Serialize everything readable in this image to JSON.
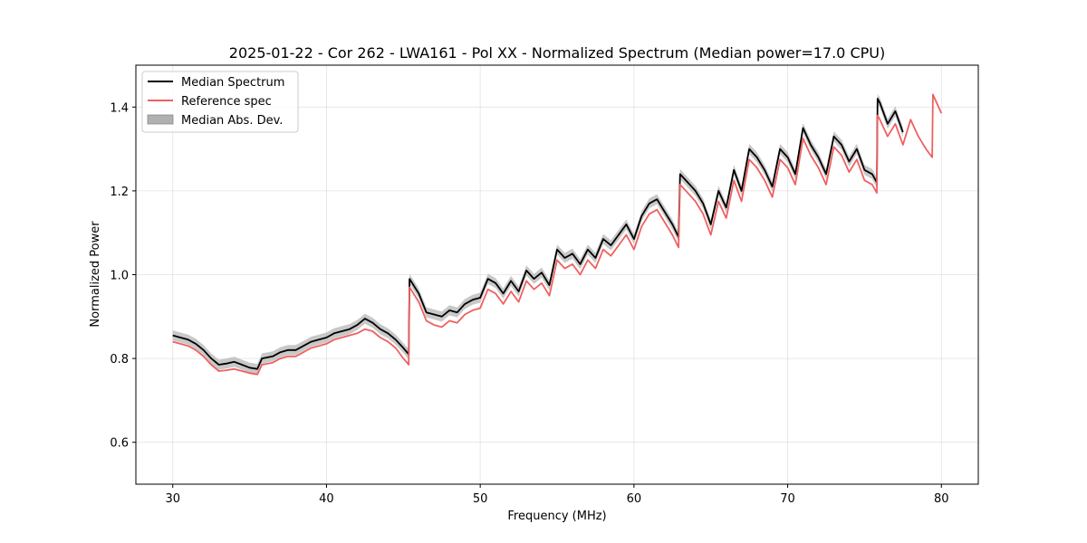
{
  "chart_data": {
    "type": "line",
    "title": "2025-01-22 - Cor 262 - LWA161 - Pol XX - Normalized Spectrum (Median power=17.0 CPU)",
    "xlabel": "Frequency (MHz)",
    "ylabel": "Normalized Power",
    "xlim": [
      27.6,
      82.4
    ],
    "ylim": [
      0.5,
      1.5
    ],
    "xticks": [
      30,
      40,
      50,
      60,
      70,
      80
    ],
    "xtick_labels": [
      "30",
      "40",
      "50",
      "60",
      "70",
      "80"
    ],
    "yticks": [
      0.6,
      0.8,
      1.0,
      1.2,
      1.4
    ],
    "ytick_labels": [
      "0.6",
      "0.8",
      "1.0",
      "1.2",
      "1.4"
    ],
    "grid": true,
    "legend_position": "top-left",
    "series": [
      {
        "name": "Median Spectrum",
        "color": "#000000",
        "x": [
          30.0,
          30.5,
          31.0,
          31.5,
          32.0,
          32.5,
          33.0,
          33.5,
          34.0,
          34.5,
          35.0,
          35.5,
          35.8,
          36.5,
          37.0,
          37.5,
          38.0,
          38.5,
          39.0,
          39.5,
          40.0,
          40.5,
          41.0,
          41.5,
          42.0,
          42.5,
          43.0,
          43.5,
          44.0,
          44.5,
          45.0,
          45.35,
          45.4,
          46.0,
          46.5,
          47.0,
          47.5,
          48.0,
          48.5,
          49.0,
          49.5,
          50.0,
          50.5,
          51.0,
          51.5,
          52.0,
          52.5,
          53.0,
          53.5,
          54.0,
          54.5,
          55.0,
          55.5,
          56.0,
          56.5,
          57.0,
          57.5,
          58.0,
          58.5,
          59.0,
          59.5,
          60.0,
          60.5,
          61.0,
          61.5,
          62.0,
          62.5,
          62.9,
          63.0,
          63.5,
          64.0,
          64.5,
          65.0,
          65.5,
          66.0,
          66.5,
          67.0,
          67.5,
          68.0,
          68.5,
          69.0,
          69.5,
          70.0,
          70.5,
          71.0,
          71.5,
          72.0,
          72.5,
          73.0,
          73.5,
          74.0,
          74.5,
          75.0,
          75.5,
          75.8,
          75.85,
          76.0,
          76.5,
          77.0,
          77.5
        ],
        "values": [
          0.855,
          0.85,
          0.845,
          0.835,
          0.82,
          0.8,
          0.785,
          0.788,
          0.792,
          0.785,
          0.778,
          0.775,
          0.8,
          0.805,
          0.815,
          0.82,
          0.82,
          0.83,
          0.84,
          0.845,
          0.85,
          0.86,
          0.865,
          0.87,
          0.88,
          0.895,
          0.885,
          0.87,
          0.86,
          0.845,
          0.825,
          0.81,
          0.99,
          0.955,
          0.91,
          0.905,
          0.9,
          0.915,
          0.91,
          0.93,
          0.94,
          0.945,
          0.99,
          0.98,
          0.955,
          0.985,
          0.96,
          1.01,
          0.99,
          1.005,
          0.975,
          1.06,
          1.04,
          1.05,
          1.025,
          1.06,
          1.04,
          1.085,
          1.07,
          1.095,
          1.12,
          1.085,
          1.14,
          1.17,
          1.18,
          1.15,
          1.12,
          1.09,
          1.24,
          1.22,
          1.2,
          1.17,
          1.12,
          1.2,
          1.16,
          1.25,
          1.2,
          1.3,
          1.28,
          1.25,
          1.21,
          1.3,
          1.28,
          1.24,
          1.35,
          1.31,
          1.28,
          1.24,
          1.33,
          1.31,
          1.27,
          1.3,
          1.25,
          1.24,
          1.22,
          1.42,
          1.41,
          1.36,
          1.39,
          1.34
        ],
        "band": {
          "name": "Median Abs. Dev.",
          "color": "#b0b0b0",
          "spread": 0.012
        }
      },
      {
        "name": "Reference spec",
        "color": "#f06060",
        "x": [
          30.0,
          30.5,
          31.0,
          31.5,
          32.0,
          32.5,
          33.0,
          33.5,
          34.0,
          34.5,
          35.0,
          35.5,
          35.8,
          36.5,
          37.0,
          37.5,
          38.0,
          38.5,
          39.0,
          39.5,
          40.0,
          40.5,
          41.0,
          41.5,
          42.0,
          42.5,
          43.0,
          43.5,
          44.0,
          44.5,
          45.0,
          45.35,
          45.4,
          46.0,
          46.5,
          47.0,
          47.5,
          48.0,
          48.5,
          49.0,
          49.5,
          50.0,
          50.5,
          51.0,
          51.5,
          52.0,
          52.5,
          53.0,
          53.5,
          54.0,
          54.5,
          55.0,
          55.5,
          56.0,
          56.5,
          57.0,
          57.5,
          58.0,
          58.5,
          59.0,
          59.5,
          60.0,
          60.5,
          61.0,
          61.5,
          62.0,
          62.5,
          62.9,
          63.0,
          63.5,
          64.0,
          64.5,
          65.0,
          65.5,
          66.0,
          66.5,
          67.0,
          67.5,
          68.0,
          68.5,
          69.0,
          69.5,
          70.0,
          70.5,
          71.0,
          71.5,
          72.0,
          72.5,
          73.0,
          73.5,
          74.0,
          74.5,
          75.0,
          75.5,
          75.8,
          75.85,
          76.0,
          76.5,
          77.0,
          77.5,
          78.0,
          78.5,
          79.0,
          79.4,
          79.45,
          80.0
        ],
        "values": [
          0.84,
          0.835,
          0.83,
          0.82,
          0.805,
          0.785,
          0.77,
          0.772,
          0.775,
          0.77,
          0.765,
          0.762,
          0.785,
          0.79,
          0.8,
          0.805,
          0.805,
          0.815,
          0.825,
          0.83,
          0.835,
          0.845,
          0.85,
          0.855,
          0.86,
          0.87,
          0.865,
          0.85,
          0.84,
          0.825,
          0.8,
          0.785,
          0.97,
          0.935,
          0.89,
          0.88,
          0.875,
          0.89,
          0.885,
          0.905,
          0.915,
          0.92,
          0.965,
          0.955,
          0.93,
          0.96,
          0.935,
          0.985,
          0.965,
          0.98,
          0.95,
          1.035,
          1.015,
          1.025,
          1.0,
          1.035,
          1.015,
          1.06,
          1.045,
          1.07,
          1.095,
          1.06,
          1.115,
          1.145,
          1.155,
          1.125,
          1.095,
          1.065,
          1.215,
          1.195,
          1.175,
          1.145,
          1.095,
          1.175,
          1.135,
          1.225,
          1.175,
          1.275,
          1.255,
          1.225,
          1.185,
          1.275,
          1.255,
          1.215,
          1.325,
          1.285,
          1.255,
          1.215,
          1.305,
          1.285,
          1.245,
          1.275,
          1.225,
          1.215,
          1.195,
          1.38,
          1.37,
          1.33,
          1.36,
          1.31,
          1.37,
          1.33,
          1.3,
          1.28,
          1.43,
          1.385
        ]
      }
    ],
    "legend": [
      {
        "label": "Median Spectrum",
        "kind": "line",
        "color": "#000000"
      },
      {
        "label": "Reference spec",
        "kind": "line",
        "color": "#f06060"
      },
      {
        "label": "Median Abs. Dev.",
        "kind": "patch",
        "color": "#b0b0b0"
      }
    ]
  }
}
